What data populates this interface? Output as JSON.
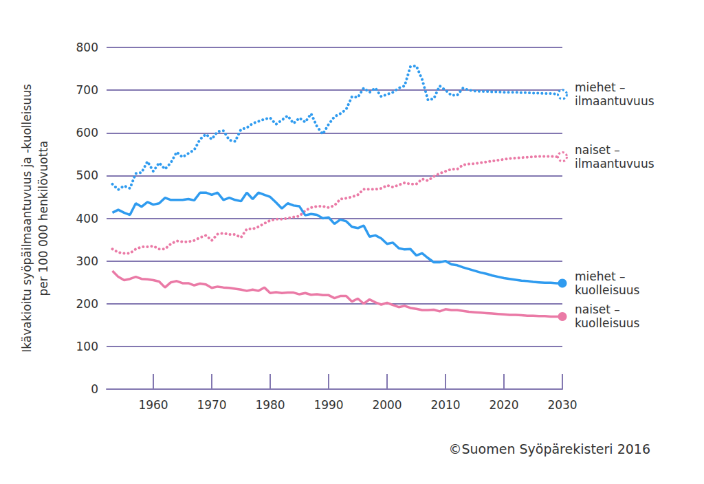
{
  "chart_data": {
    "type": "line",
    "y_label": "Ikävakioitu syöpäilmaantuvuus ja -kuolleisuus\nper 100 000 henkilövuotta",
    "annotations": [
      "©Suomen Syöpärekisteri 2016"
    ],
    "x": [
      1953,
      1954,
      1955,
      1956,
      1957,
      1958,
      1959,
      1960,
      1961,
      1962,
      1963,
      1964,
      1965,
      1966,
      1967,
      1968,
      1969,
      1970,
      1971,
      1972,
      1973,
      1974,
      1975,
      1976,
      1977,
      1978,
      1979,
      1980,
      1981,
      1982,
      1983,
      1984,
      1985,
      1986,
      1987,
      1988,
      1989,
      1990,
      1991,
      1992,
      1993,
      1994,
      1995,
      1996,
      1997,
      1998,
      1999,
      2000,
      2001,
      2002,
      2003,
      2004,
      2005,
      2006,
      2007,
      2008,
      2009,
      2010,
      2011,
      2012,
      2013,
      2014,
      2015,
      2016,
      2017,
      2018,
      2019,
      2020,
      2021,
      2022,
      2023,
      2024,
      2025,
      2026,
      2027,
      2028,
      2029,
      2030
    ],
    "series": [
      {
        "name": "miehet – ilmaantuvuus",
        "color": "#2f9bef",
        "line_style": "dotted",
        "values": [
          480,
          467,
          476,
          470,
          505,
          507,
          533,
          510,
          530,
          515,
          530,
          555,
          543,
          552,
          560,
          585,
          597,
          585,
          603,
          605,
          583,
          580,
          608,
          612,
          622,
          627,
          632,
          635,
          620,
          630,
          640,
          622,
          635,
          625,
          645,
          615,
          597,
          620,
          638,
          645,
          655,
          685,
          683,
          705,
          695,
          705,
          685,
          690,
          695,
          705,
          710,
          755,
          757,
          725,
          677,
          680,
          710,
          700,
          688,
          688,
          705,
          700,
          698,
          697,
          697,
          696,
          696,
          695,
          695,
          695,
          694,
          694,
          693,
          693,
          692,
          692,
          691,
          690
        ]
      },
      {
        "name": "naiset – ilmaantuvuus",
        "color": "#ea7aa6",
        "line_style": "dotted",
        "values": [
          328,
          320,
          318,
          318,
          328,
          333,
          333,
          335,
          328,
          328,
          340,
          347,
          345,
          345,
          348,
          355,
          360,
          348,
          363,
          365,
          362,
          362,
          355,
          375,
          375,
          380,
          388,
          395,
          398,
          398,
          400,
          403,
          405,
          418,
          425,
          428,
          428,
          425,
          430,
          445,
          447,
          450,
          455,
          468,
          468,
          468,
          470,
          477,
          473,
          478,
          483,
          480,
          480,
          492,
          488,
          498,
          505,
          510,
          515,
          515,
          525,
          527,
          528,
          530,
          532,
          534,
          536,
          538,
          540,
          541,
          542,
          543,
          544,
          545,
          545,
          545,
          544,
          544
        ]
      },
      {
        "name": "miehet – kuolleisuus",
        "color": "#2f9bef",
        "line_style": "solid",
        "values": [
          413,
          420,
          413,
          408,
          435,
          427,
          438,
          432,
          435,
          448,
          443,
          443,
          443,
          445,
          442,
          460,
          460,
          455,
          460,
          443,
          448,
          443,
          440,
          460,
          445,
          460,
          455,
          450,
          437,
          423,
          435,
          430,
          428,
          407,
          410,
          408,
          400,
          402,
          387,
          397,
          393,
          380,
          377,
          383,
          357,
          360,
          353,
          340,
          343,
          330,
          327,
          328,
          313,
          318,
          307,
          297,
          297,
          300,
          292,
          290,
          285,
          281,
          277,
          273,
          270,
          266,
          263,
          260,
          258,
          256,
          254,
          253,
          251,
          250,
          249,
          249,
          248,
          248
        ]
      },
      {
        "name": "naiset – kuolleisuus",
        "color": "#ea7aa6",
        "line_style": "solid",
        "values": [
          277,
          263,
          255,
          258,
          263,
          258,
          257,
          255,
          252,
          238,
          250,
          253,
          248,
          248,
          243,
          247,
          245,
          237,
          240,
          238,
          237,
          235,
          233,
          230,
          233,
          230,
          238,
          225,
          227,
          225,
          226,
          226,
          222,
          225,
          221,
          222,
          220,
          220,
          213,
          218,
          218,
          205,
          212,
          200,
          210,
          203,
          198,
          202,
          197,
          192,
          195,
          190,
          188,
          185,
          185,
          186,
          182,
          187,
          185,
          185,
          183,
          181,
          180,
          179,
          178,
          177,
          176,
          175,
          174,
          174,
          173,
          172,
          172,
          171,
          171,
          170,
          170,
          170
        ]
      }
    ],
    "xlim": [
      1952,
      2030
    ],
    "xticks": [
      1960,
      1970,
      1980,
      1990,
      2000,
      2010,
      2020,
      2030
    ],
    "ylim": [
      0,
      800
    ],
    "yticks": [
      0,
      100,
      200,
      300,
      400,
      500,
      600,
      700,
      800
    ],
    "grid": true
  }
}
